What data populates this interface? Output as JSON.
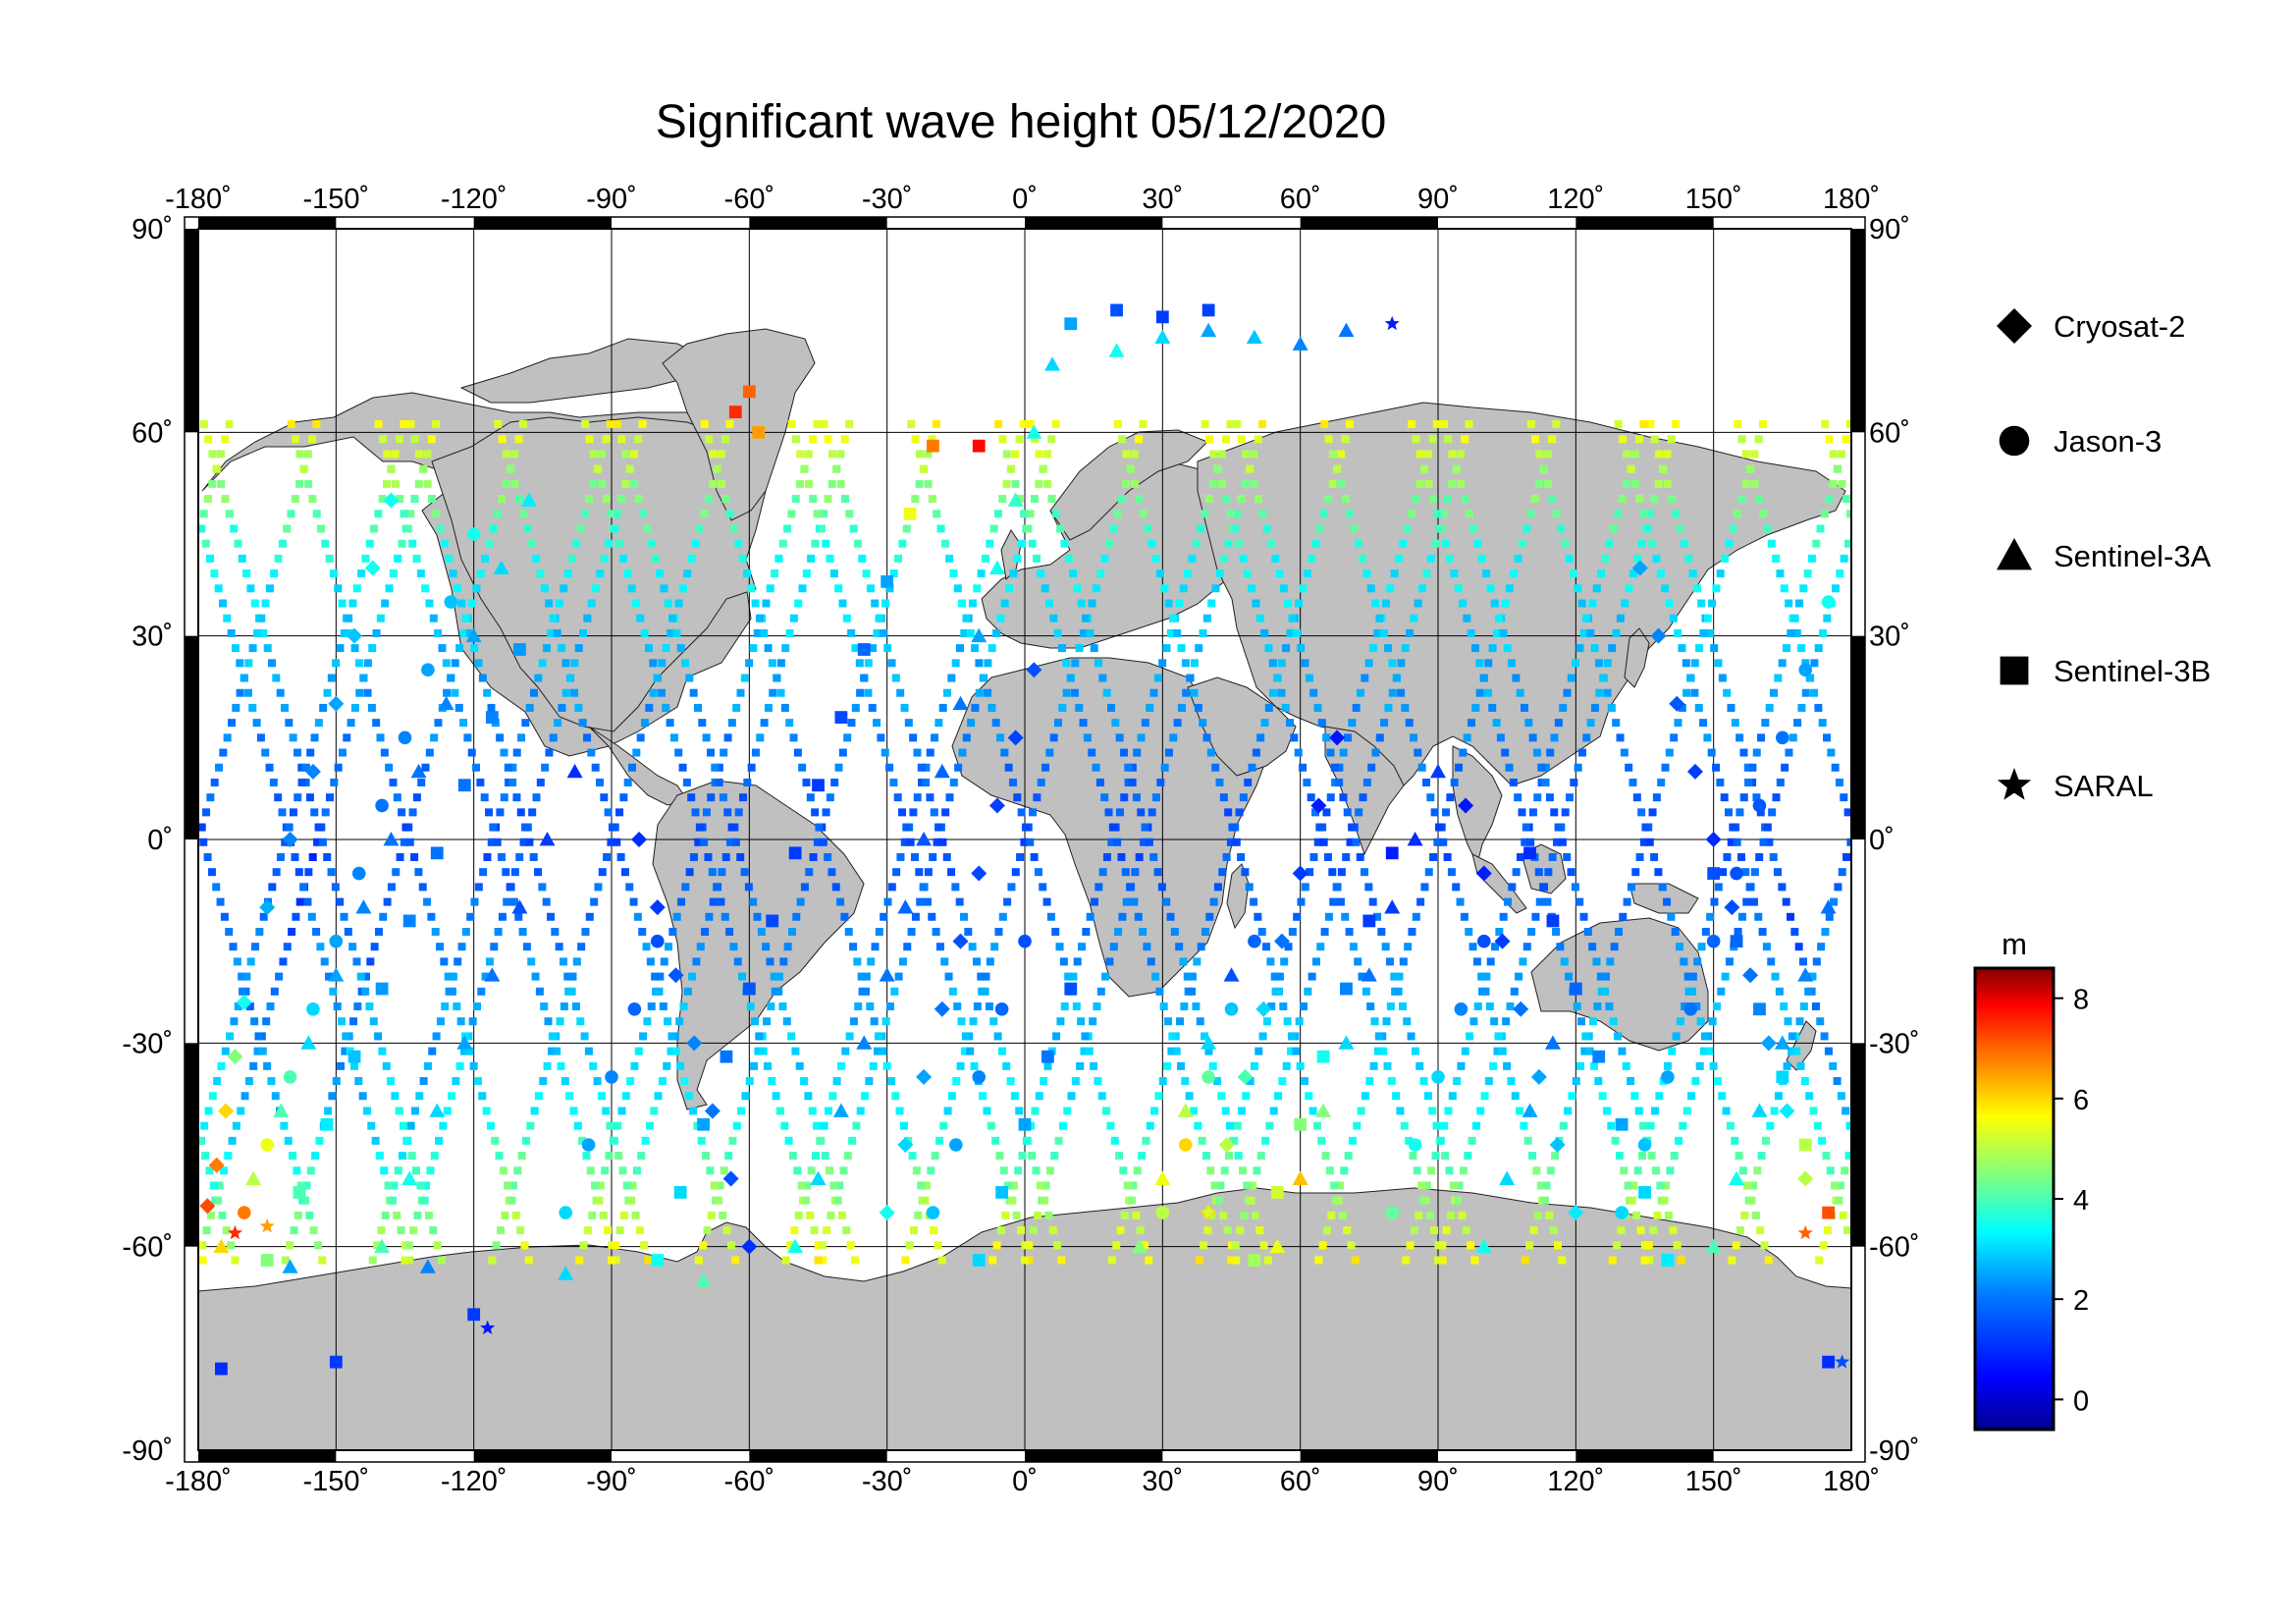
{
  "title": "Significant wave height 05/12/2020",
  "map": {
    "projection": "equirectangular",
    "lon_range": [
      -180,
      180
    ],
    "lat_range": [
      -90,
      90
    ],
    "lon_ticks": [
      "-180˚",
      "-150˚",
      "-120˚",
      "-90˚",
      "-60˚",
      "-30˚",
      "0˚",
      "30˚",
      "60˚",
      "90˚",
      "120˚",
      "150˚",
      "180˚"
    ],
    "lat_ticks_left": [
      "90˚",
      "60˚",
      "30˚",
      "0˚",
      "-30˚",
      "-60˚",
      "-90˚"
    ],
    "lat_ticks_right": [
      "90˚",
      "60˚",
      "30˚",
      "0˚",
      "-30˚",
      "-60˚",
      "-90˚"
    ],
    "land_color": "#c0c0c0",
    "ocean_color": "#ffffff",
    "grid": true
  },
  "legend": {
    "items": [
      {
        "label": "Cryosat-2",
        "symbol": "diamond"
      },
      {
        "label": "Jason-3",
        "symbol": "circle"
      },
      {
        "label": "Sentinel-3A",
        "symbol": "triangle"
      },
      {
        "label": "Sentinel-3B",
        "symbol": "square"
      },
      {
        "label": "SARAL",
        "symbol": "star"
      }
    ]
  },
  "colorbar": {
    "unit": "m",
    "range": [
      -0.6,
      8.6
    ],
    "ticks": [
      "0",
      "2",
      "4",
      "6",
      "8"
    ],
    "colormap": [
      "#00008f",
      "#0000ff",
      "#0080ff",
      "#00ffff",
      "#80ff80",
      "#ffff00",
      "#ff8000",
      "#ff0000",
      "#800000"
    ]
  },
  "chart_data": {
    "type": "scatter",
    "title": "Significant wave height 05/12/2020",
    "xlabel": "",
    "ylabel": "",
    "xlim": [
      -180,
      180
    ],
    "ylim": [
      -90,
      90
    ],
    "value_unit": "m",
    "value_range": [
      -0.6,
      8.6
    ],
    "series": [
      {
        "name": "Cryosat-2",
        "marker": "diamond",
        "points": [
          [
            -178,
            -54,
            7.2
          ],
          [
            -176,
            -48,
            6.8
          ],
          [
            -174,
            -40,
            6.0
          ],
          [
            -172,
            -32,
            4.5
          ],
          [
            -170,
            -24,
            3.5
          ],
          [
            -165,
            -10,
            2.6
          ],
          [
            -160,
            0,
            2.2
          ],
          [
            -155,
            10,
            2.2
          ],
          [
            -150,
            20,
            2.5
          ],
          [
            -146,
            30,
            2.8
          ],
          [
            -142,
            40,
            3.5
          ],
          [
            -138,
            50,
            3.5
          ],
          [
            -60,
            -60,
            1.0
          ],
          [
            -64,
            -50,
            1.5
          ],
          [
            -68,
            -40,
            2.0
          ],
          [
            -72,
            -30,
            2.2
          ],
          [
            -76,
            -20,
            1.6
          ],
          [
            -80,
            -10,
            1.2
          ],
          [
            -84,
            0,
            1.0
          ],
          [
            -30,
            -55,
            3.5
          ],
          [
            -26,
            -45,
            3.0
          ],
          [
            -22,
            -35,
            2.5
          ],
          [
            -18,
            -25,
            2.0
          ],
          [
            -14,
            -15,
            1.5
          ],
          [
            -10,
            -5,
            1.4
          ],
          [
            -6,
            5,
            1.3
          ],
          [
            -2,
            15,
            1.3
          ],
          [
            2,
            25,
            1.5
          ],
          [
            40,
            -55,
            6.0
          ],
          [
            44,
            -45,
            5.0
          ],
          [
            48,
            -35,
            4.0
          ],
          [
            52,
            -25,
            3.0
          ],
          [
            56,
            -15,
            2.0
          ],
          [
            60,
            -5,
            1.2
          ],
          [
            64,
            5,
            0.8
          ],
          [
            68,
            15,
            0.7
          ],
          [
            120,
            -55,
            3.2
          ],
          [
            116,
            -45,
            2.8
          ],
          [
            112,
            -35,
            2.5
          ],
          [
            108,
            -25,
            2.0
          ],
          [
            104,
            -15,
            1.2
          ],
          [
            100,
            -5,
            0.8
          ],
          [
            96,
            5,
            0.7
          ],
          [
            170,
            -50,
            5.0
          ],
          [
            166,
            -40,
            3.2
          ],
          [
            162,
            -30,
            2.5
          ],
          [
            158,
            -20,
            2.0
          ],
          [
            154,
            -10,
            1.5
          ],
          [
            150,
            0,
            1.0
          ],
          [
            146,
            10,
            1.2
          ],
          [
            142,
            20,
            1.6
          ],
          [
            138,
            30,
            2.2
          ],
          [
            134,
            40,
            2.5
          ]
        ]
      },
      {
        "name": "Jason-3",
        "marker": "circle",
        "points": [
          [
            -170,
            -55,
            6.8
          ],
          [
            -165,
            -45,
            5.5
          ],
          [
            -160,
            -35,
            4.0
          ],
          [
            -155,
            -25,
            3.0
          ],
          [
            -150,
            -15,
            2.5
          ],
          [
            -145,
            -5,
            2.2
          ],
          [
            -140,
            5,
            2.0
          ],
          [
            -135,
            15,
            2.2
          ],
          [
            -130,
            25,
            2.5
          ],
          [
            -125,
            35,
            2.8
          ],
          [
            -120,
            45,
            3.5
          ],
          [
            -100,
            -55,
            3.0
          ],
          [
            -95,
            -45,
            2.5
          ],
          [
            -90,
            -35,
            2.2
          ],
          [
            -85,
            -25,
            1.8
          ],
          [
            -80,
            -15,
            1.5
          ],
          [
            -20,
            -55,
            2.8
          ],
          [
            -15,
            -45,
            2.5
          ],
          [
            -10,
            -35,
            2.2
          ],
          [
            -5,
            -25,
            1.8
          ],
          [
            0,
            -15,
            1.5
          ],
          [
            30,
            -55,
            5.0
          ],
          [
            35,
            -45,
            6.0
          ],
          [
            40,
            -35,
            4.2
          ],
          [
            45,
            -25,
            2.8
          ],
          [
            50,
            -15,
            1.8
          ],
          [
            80,
            -55,
            4.2
          ],
          [
            85,
            -45,
            3.5
          ],
          [
            90,
            -35,
            3.0
          ],
          [
            95,
            -25,
            2.2
          ],
          [
            100,
            -15,
            1.5
          ],
          [
            130,
            -55,
            3.0
          ],
          [
            135,
            -45,
            2.8
          ],
          [
            140,
            -35,
            2.5
          ],
          [
            145,
            -25,
            2.0
          ],
          [
            150,
            -15,
            1.8
          ],
          [
            155,
            -5,
            1.5
          ],
          [
            160,
            5,
            1.6
          ],
          [
            165,
            15,
            2.0
          ],
          [
            170,
            25,
            2.5
          ],
          [
            175,
            35,
            3.5
          ]
        ]
      },
      {
        "name": "Sentinel-3A",
        "marker": "triangle",
        "points": [
          [
            -175,
            -60,
            6.0
          ],
          [
            -168,
            -50,
            5.0
          ],
          [
            -162,
            -40,
            4.0
          ],
          [
            -156,
            -30,
            3.0
          ],
          [
            -150,
            -20,
            2.5
          ],
          [
            -144,
            -10,
            2.2
          ],
          [
            -138,
            0,
            2.0
          ],
          [
            -132,
            10,
            2.0
          ],
          [
            -126,
            20,
            2.2
          ],
          [
            -120,
            30,
            2.5
          ],
          [
            -114,
            40,
            3.0
          ],
          [
            -108,
            50,
            3.2
          ],
          [
            -140,
            -60,
            4.0
          ],
          [
            -134,
            -50,
            3.5
          ],
          [
            -128,
            -40,
            3.0
          ],
          [
            -122,
            -30,
            2.5
          ],
          [
            -116,
            -20,
            2.0
          ],
          [
            -110,
            -10,
            1.5
          ],
          [
            -104,
            0,
            1.2
          ],
          [
            -98,
            10,
            1.0
          ],
          [
            -50,
            -60,
            3.5
          ],
          [
            -45,
            -50,
            3.0
          ],
          [
            -40,
            -40,
            2.5
          ],
          [
            -35,
            -30,
            2.2
          ],
          [
            -30,
            -20,
            2.0
          ],
          [
            -26,
            -10,
            1.8
          ],
          [
            -22,
            0,
            1.6
          ],
          [
            -18,
            10,
            1.8
          ],
          [
            -14,
            20,
            2.0
          ],
          [
            -10,
            30,
            2.5
          ],
          [
            -6,
            40,
            3.5
          ],
          [
            -2,
            50,
            3.8
          ],
          [
            2,
            60,
            3.5
          ],
          [
            6,
            70,
            3.0
          ],
          [
            25,
            -60,
            4.5
          ],
          [
            30,
            -50,
            5.5
          ],
          [
            35,
            -40,
            5.0
          ],
          [
            40,
            -30,
            3.0
          ],
          [
            45,
            -20,
            1.5
          ],
          [
            55,
            -60,
            5.5
          ],
          [
            60,
            -50,
            6.2
          ],
          [
            65,
            -40,
            4.5
          ],
          [
            70,
            -30,
            3.0
          ],
          [
            75,
            -20,
            2.0
          ],
          [
            80,
            -10,
            1.2
          ],
          [
            85,
            0,
            1.0
          ],
          [
            90,
            10,
            1.2
          ],
          [
            100,
            -60,
            3.5
          ],
          [
            105,
            -50,
            3.0
          ],
          [
            110,
            -40,
            2.5
          ],
          [
            115,
            -30,
            2.0
          ],
          [
            150,
            -60,
            4.0
          ],
          [
            155,
            -50,
            3.5
          ],
          [
            160,
            -40,
            3.0
          ],
          [
            165,
            -30,
            2.5
          ],
          [
            170,
            -20,
            2.2
          ],
          [
            175,
            -10,
            2.0
          ],
          [
            20,
            72,
            3.5
          ],
          [
            30,
            74,
            3.0
          ],
          [
            40,
            75,
            2.5
          ],
          [
            50,
            74,
            2.8
          ],
          [
            60,
            73,
            2.2
          ],
          [
            70,
            75,
            2.0
          ],
          [
            -160,
            -63,
            2.5
          ],
          [
            -130,
            -63,
            2.2
          ],
          [
            -100,
            -64,
            3.0
          ],
          [
            -70,
            -65,
            4.0
          ]
        ]
      },
      {
        "name": "Sentinel-3B",
        "marker": "square",
        "points": [
          [
            -165,
            -62,
            4.5
          ],
          [
            -158,
            -52,
            4.0
          ],
          [
            -152,
            -42,
            3.2
          ],
          [
            -146,
            -32,
            2.8
          ],
          [
            -140,
            -22,
            2.4
          ],
          [
            -134,
            -12,
            2.2
          ],
          [
            -128,
            -2,
            2.0
          ],
          [
            -122,
            8,
            2.0
          ],
          [
            -116,
            18,
            2.2
          ],
          [
            -110,
            28,
            2.4
          ],
          [
            -80,
            -62,
            3.5
          ],
          [
            -75,
            -52,
            3.0
          ],
          [
            -70,
            -42,
            2.5
          ],
          [
            -65,
            -32,
            2.0
          ],
          [
            -60,
            -22,
            1.6
          ],
          [
            -55,
            -12,
            1.4
          ],
          [
            -50,
            -2,
            1.2
          ],
          [
            -45,
            8,
            1.2
          ],
          [
            -40,
            18,
            1.4
          ],
          [
            -35,
            28,
            1.8
          ],
          [
            -30,
            38,
            2.5
          ],
          [
            -25,
            48,
            5.5
          ],
          [
            -20,
            58,
            6.8
          ],
          [
            -10,
            -62,
            3.0
          ],
          [
            -5,
            -52,
            2.8
          ],
          [
            0,
            -42,
            2.5
          ],
          [
            5,
            -32,
            2.0
          ],
          [
            10,
            -22,
            1.5
          ],
          [
            50,
            -62,
            4.8
          ],
          [
            55,
            -52,
            5.2
          ],
          [
            60,
            -42,
            4.5
          ],
          [
            65,
            -32,
            3.5
          ],
          [
            70,
            -22,
            2.2
          ],
          [
            75,
            -12,
            1.2
          ],
          [
            80,
            -2,
            0.8
          ],
          [
            140,
            -62,
            3.2
          ],
          [
            135,
            -52,
            3.0
          ],
          [
            130,
            -42,
            2.5
          ],
          [
            125,
            -32,
            2.2
          ],
          [
            120,
            -22,
            1.8
          ],
          [
            115,
            -12,
            1.2
          ],
          [
            110,
            -2,
            1.0
          ],
          [
            175,
            -55,
            7.2
          ],
          [
            170,
            -45,
            5.0
          ],
          [
            165,
            -35,
            3.0
          ],
          [
            160,
            -25,
            2.2
          ],
          [
            155,
            -15,
            1.8
          ],
          [
            150,
            -5,
            1.5
          ],
          [
            10,
            76,
            2.5
          ],
          [
            20,
            78,
            1.5
          ],
          [
            30,
            77,
            1.2
          ],
          [
            40,
            78,
            1.3
          ],
          [
            -63,
            63,
            7.5
          ],
          [
            -60,
            66,
            7.0
          ],
          [
            -58,
            60,
            6.5
          ],
          [
            -10,
            58,
            7.8
          ],
          [
            -150,
            -77,
            1.2
          ],
          [
            -120,
            -70,
            1.2
          ],
          [
            -175,
            -78,
            1.0
          ],
          [
            175,
            -77,
            1.0
          ]
        ]
      },
      {
        "name": "SARAL",
        "marker": "star",
        "points": [
          [
            -117,
            -72,
            0.8
          ],
          [
            80,
            76,
            0.8
          ],
          [
            178,
            -77,
            1.5
          ],
          [
            -165,
            -57,
            6.5
          ],
          [
            -172,
            -58,
            7.5
          ],
          [
            170,
            -58,
            7.0
          ],
          [
            40,
            -55,
            5.2
          ]
        ]
      }
    ]
  }
}
